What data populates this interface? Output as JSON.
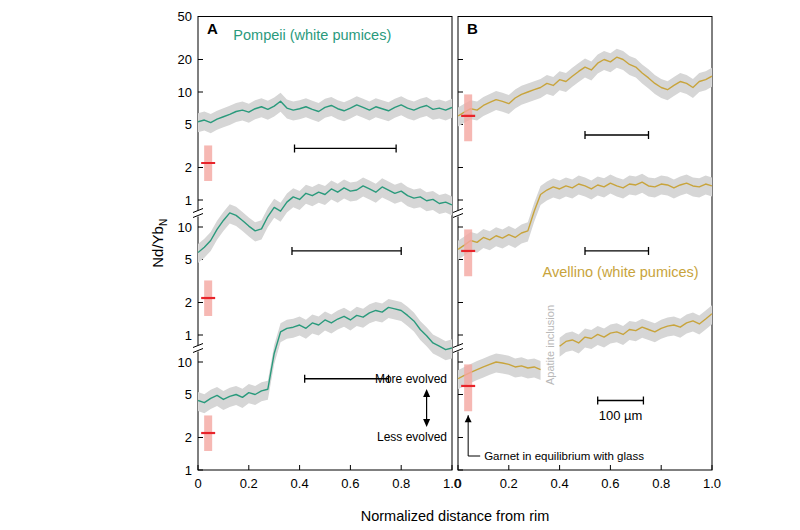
{
  "chart_data": {
    "type": "line",
    "log": "y",
    "y_label": "Nd/Yb",
    "y_label_subscript": "N",
    "x_label": "Normalized distance from rim",
    "xlim": [
      0,
      1
    ],
    "xticks": [
      0,
      0.2,
      0.4,
      0.6,
      0.8,
      {
        "value": 1,
        "label": "1.0"
      }
    ],
    "x": [
      0,
      0.025,
      0.05,
      0.075,
      0.1,
      0.125,
      0.15,
      0.175,
      0.2,
      0.225,
      0.25,
      0.275,
      0.3,
      0.325,
      0.35,
      0.375,
      0.4,
      0.425,
      0.45,
      0.475,
      0.5,
      0.525,
      0.55,
      0.575,
      0.6,
      0.625,
      0.65,
      0.675,
      0.7,
      0.725,
      0.75,
      0.775,
      0.8,
      0.825,
      0.85,
      0.875,
      0.9,
      0.925,
      0.95,
      0.975,
      1
    ],
    "panels": [
      {
        "label": "A",
        "title": "Pompeii (white pumices)",
        "color": "#2a9a7c",
        "tick_labels": true,
        "subplots": [
          {
            "ylim": [
              1,
              50
            ],
            "yticks": [
              1,
              2,
              5,
              10,
              20,
              50
            ],
            "series": [
              {
                "color": "#2a9a7c",
                "error_percent": 20,
                "values": [
                  5.3,
                  5.5,
                  5.2,
                  5.6,
                  5.9,
                  6.2,
                  6.6,
                  6.8,
                  6.5,
                  7.0,
                  7.3,
                  6.9,
                  7.4,
                  8.2,
                  7.1,
                  6.8,
                  7.0,
                  7.3,
                  6.9,
                  6.6,
                  7.2,
                  7.5,
                  7.0,
                  6.7,
                  7.1,
                  7.6,
                  7.2,
                  6.8,
                  7.3,
                  7.0,
                  6.7,
                  7.2,
                  7.6,
                  7.1,
                  6.8,
                  7.2,
                  7.5,
                  6.9,
                  7.1,
                  6.8,
                  7.2
                ]
              }
            ],
            "garnet": {
              "x": 0.04,
              "value": 2.2,
              "low": 1.5,
              "high": 3.2
            },
            "scale_bar": {
              "x": [
                0.38,
                0.78
              ],
              "y": 3
            }
          },
          {
            "ylim": [
              1,
              40
            ],
            "yticks": [
              1,
              2,
              5,
              10
            ],
            "series": [
              {
                "color": "#2a9a7c",
                "error_percent": 20,
                "values": [
                  5.8,
                  6.5,
                  7.5,
                  9.5,
                  11.5,
                  13.5,
                  12.8,
                  11.5,
                  10.2,
                  9.2,
                  9.6,
                  12.5,
                  15.2,
                  14.0,
                  17.0,
                  19.0,
                  18.0,
                  20.5,
                  19.5,
                  21.0,
                  20.0,
                  22.5,
                  21.0,
                  23.0,
                  21.5,
                  22.0,
                  24.0,
                  22.5,
                  21.0,
                  23.5,
                  22.0,
                  20.5,
                  21.5,
                  19.5,
                  18.5,
                  19.0,
                  17.5,
                  18.0,
                  16.5,
                  17.0,
                  16.0
                ]
              }
            ],
            "garnet": {
              "x": 0.04,
              "value": 2.2,
              "low": 1.5,
              "high": 3.2
            },
            "scale_bar": {
              "x": [
                0.37,
                0.8
              ],
              "y": 6
            }
          },
          {
            "ylim": [
              1,
              40
            ],
            "yticks": [
              1,
              2,
              5,
              10
            ],
            "series": [
              {
                "color": "#2a9a7c",
                "error_percent": 20,
                "values": [
                  4.4,
                  4.2,
                  4.6,
                  4.9,
                  4.5,
                  4.8,
                  5.0,
                  4.7,
                  5.2,
                  5.0,
                  5.4,
                  5.6,
                  12.0,
                  19.0,
                  20.5,
                  21.0,
                  22.0,
                  20.5,
                  23.0,
                  22.0,
                  24.5,
                  23.0,
                  25.0,
                  26.5,
                  24.5,
                  27.0,
                  26.0,
                  28.5,
                  30.0,
                  29.0,
                  32.0,
                  31.0,
                  30.0,
                  27.0,
                  24.0,
                  20.0,
                  17.5,
                  15.0,
                  14.0,
                  13.0,
                  13.5
                ]
              }
            ],
            "garnet": {
              "x": 0.04,
              "value": 2.2,
              "low": 1.5,
              "high": 3.2
            },
            "scale_bar": {
              "x": [
                0.42,
                0.75
              ],
              "y": 7
            },
            "evolved": {
              "more": "More evolved",
              "less": "Less evolved"
            }
          }
        ]
      },
      {
        "label": "B",
        "title": "Avellino (white pumices)",
        "color": "#c8a43c",
        "tick_labels": "x",
        "subplots": [
          {
            "ylim": [
              1,
              50
            ],
            "yticks": [
              1,
              2,
              5,
              10,
              20,
              50
            ],
            "series": [
              {
                "color": "#c8a43c",
                "error_percent": 20,
                "values": [
                  6.0,
                  6.5,
                  7.0,
                  6.8,
                  7.5,
                  8.0,
                  8.5,
                  8.2,
                  7.8,
                  8.8,
                  9.5,
                  10.0,
                  10.5,
                  11.0,
                  12.0,
                  11.5,
                  13.0,
                  12.5,
                  14.0,
                  15.5,
                  17.0,
                  16.0,
                  18.5,
                  20.0,
                  19.0,
                  21.0,
                  20.0,
                  18.0,
                  17.0,
                  15.0,
                  13.5,
                  12.0,
                  11.0,
                  10.5,
                  11.5,
                  12.5,
                  12.0,
                  11.0,
                  12.5,
                  13.0,
                  14.0
                ]
              }
            ],
            "garnet": {
              "x": 0.04,
              "value": 6,
              "low": 3.5,
              "high": 9.5
            },
            "scale_bar": {
              "x": [
                0.5,
                0.75
              ],
              "y": 4
            }
          },
          {
            "ylim": [
              1,
              40
            ],
            "yticks": [
              1,
              2,
              5,
              10
            ],
            "series": [
              {
                "color": "#c8a43c",
                "error_percent": 20,
                "values": [
                  6.2,
                  6.8,
                  7.5,
                  7.2,
                  8.0,
                  7.6,
                  8.3,
                  7.9,
                  8.5,
                  8.0,
                  8.8,
                  9.2,
                  14.0,
                  20.0,
                  22.0,
                  23.5,
                  22.5,
                  24.0,
                  23.0,
                  25.0,
                  24.0,
                  22.5,
                  24.5,
                  23.5,
                  25.5,
                  24.0,
                  23.0,
                  25.0,
                  24.5,
                  26.0,
                  24.0,
                  23.5,
                  25.0,
                  24.5,
                  23.0,
                  24.5,
                  25.5,
                  24.0,
                  23.5,
                  25.0,
                  24.0
                ]
              }
            ],
            "garnet": {
              "x": 0.04,
              "value": 6,
              "low": 3.5,
              "high": 9.5
            },
            "scale_bar": {
              "x": [
                0.5,
                0.75
              ],
              "y": 6
            }
          },
          {
            "ylim": [
              1,
              40
            ],
            "yticks": [
              1,
              2,
              5,
              10
            ],
            "series": [
              {
                "color": "#c8a43c",
                "error_percent": 20,
                "values": [
                  7.0,
                  7.5,
                  8.0,
                  8.5,
                  9.0,
                  9.5,
                  10.0,
                  9.8,
                  9.5,
                  9.0,
                  9.2,
                  8.8,
                  9.0,
                  8.5,
                  null,
                  null,
                  14.0,
                  15.5,
                  16.0,
                  15.0,
                  17.0,
                  16.5,
                  18.0,
                  17.0,
                  18.5,
                  19.0,
                  18.0,
                  20.0,
                  19.5,
                  21.0,
                  20.0,
                  19.0,
                  20.5,
                  21.5,
                  22.0,
                  21.0,
                  23.0,
                  24.0,
                  22.5,
                  25.0,
                  28.0
                ]
              }
            ],
            "garnet": {
              "x": 0.04,
              "value": 6,
              "low": 3.5,
              "high": 9.5
            },
            "scale_bar": {
              "x": [
                0.55,
                0.73
              ],
              "y": 4.4,
              "label": "100 µm"
            },
            "inclusion": "Apatite inclusion",
            "garnet_note": "Garnet in equilibrium with glass"
          }
        ]
      }
    ]
  }
}
